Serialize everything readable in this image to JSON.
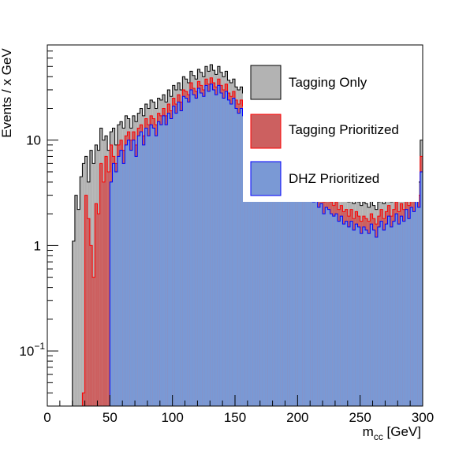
{
  "chart_data": {
    "type": "histogram",
    "xlabel_main": "m",
    "xlabel_sub": "cc",
    "xlabel_unit": " [GeV]",
    "ylabel": "Events / x GeV",
    "x_range": [
      0,
      300
    ],
    "y_range": [
      0.03,
      80
    ],
    "y_scale": "log",
    "bin_width": 2,
    "x_ticks": [
      0,
      50,
      100,
      150,
      200,
      250,
      300
    ],
    "y_ticks": [
      {
        "value": 0.1,
        "base": "10",
        "exp": "−1"
      },
      {
        "value": 1,
        "base": "1",
        "exp": ""
      },
      {
        "value": 10,
        "base": "10",
        "exp": ""
      }
    ],
    "legend_position": "top-right",
    "series": [
      {
        "name": "Tagging Only",
        "fill": "#b3b3b3",
        "stroke": "#000000",
        "values": [
          0,
          0,
          0,
          0,
          0,
          0,
          0,
          0,
          0,
          0,
          1.1,
          3.0,
          2.2,
          4.5,
          6.0,
          7.0,
          4.0,
          8.0,
          6.0,
          9.0,
          8.0,
          13.0,
          10.0,
          11.0,
          8.0,
          12.0,
          13.0,
          9.0,
          14.0,
          15.0,
          13.0,
          17.0,
          16.0,
          13.0,
          17.0,
          15.0,
          18.0,
          20.0,
          17.0,
          22.0,
          20.0,
          24.0,
          23.0,
          20.0,
          25.0,
          24.0,
          27.0,
          23.0,
          30.0,
          26.0,
          33.0,
          30.0,
          35.0,
          30.0,
          40.0,
          38.0,
          35.0,
          45.0,
          41.0,
          38.0,
          47.0,
          44.0,
          40.0,
          50.0,
          45.0,
          52.0,
          46.0,
          42.0,
          50.0,
          44.0,
          40.0,
          45.0,
          37.0,
          35.0,
          38.0,
          32.0,
          30.0,
          32.0,
          28.0,
          26.0,
          25.0,
          23.0,
          22.0,
          20.0,
          18.0,
          19.0,
          16.0,
          15.0,
          14.0,
          15.0,
          12.0,
          12.0,
          11.0,
          10.0,
          9.0,
          9.5,
          8.0,
          8.0,
          7.0,
          7.5,
          6.5,
          6.0,
          5.5,
          6.0,
          5.0,
          5.0,
          4.5,
          4.8,
          4.0,
          4.2,
          3.5,
          4.0,
          3.8,
          3.5,
          3.2,
          3.5,
          3.0,
          3.2,
          2.8,
          3.0,
          2.6,
          3.0,
          2.5,
          2.8,
          2.6,
          2.4,
          2.6,
          2.5,
          2.3,
          2.7,
          2.4,
          2.2,
          2.6,
          3.0,
          2.5,
          2.8,
          3.2,
          2.6,
          3.0,
          3.5,
          2.8,
          3.3,
          3.0,
          3.8,
          3.2,
          4.0,
          3.6,
          6.0,
          4.0,
          10.0
        ]
      },
      {
        "name": "Tagging Prioritized",
        "fill": "#cc6060",
        "stroke": "#ff0000",
        "values": [
          0,
          0,
          0,
          0,
          0,
          0,
          0,
          0,
          0,
          0,
          0,
          0,
          0,
          0,
          0.04,
          3.0,
          1.8,
          1.0,
          0.5,
          2.5,
          2.0,
          6.0,
          4.0,
          7.0,
          5.0,
          9.0,
          7.0,
          6.0,
          9.0,
          10.0,
          8.0,
          11.0,
          12.0,
          10.0,
          12.0,
          9.0,
          13.0,
          14.0,
          11.0,
          16.0,
          14.0,
          17.0,
          16.0,
          14.0,
          18.0,
          17.0,
          20.0,
          17.0,
          22.0,
          19.0,
          25.0,
          22.0,
          27.0,
          23.0,
          30.0,
          29.0,
          27.0,
          35.0,
          31.0,
          29.0,
          36.0,
          33.0,
          30.0,
          38.0,
          34.0,
          39.0,
          35.0,
          32.0,
          38.0,
          33.0,
          30.0,
          34.0,
          28.0,
          26.0,
          29.0,
          24.0,
          22.0,
          24.0,
          21.0,
          19.0,
          18.0,
          17.0,
          16.0,
          14.0,
          13.0,
          14.0,
          12.0,
          11.0,
          10.0,
          11.0,
          9.0,
          9.0,
          8.0,
          7.0,
          6.5,
          7.0,
          5.8,
          6.0,
          5.0,
          5.5,
          4.8,
          4.5,
          4.0,
          4.5,
          3.6,
          3.8,
          3.3,
          3.6,
          3.0,
          3.2,
          2.6,
          3.0,
          2.8,
          2.6,
          2.4,
          2.6,
          2.2,
          2.4,
          2.1,
          2.2,
          1.9,
          2.2,
          1.8,
          2.1,
          1.9,
          1.7,
          1.9,
          1.8,
          1.7,
          2.0,
          1.8,
          1.6,
          1.9,
          2.2,
          1.8,
          2.1,
          2.4,
          1.9,
          2.2,
          2.6,
          2.1,
          2.5,
          2.2,
          2.8,
          2.4,
          3.0,
          2.7,
          4.5,
          3.0,
          7.0
        ]
      },
      {
        "name": "DHZ Prioritized",
        "fill": "#7a99d5",
        "stroke": "#0000ff",
        "values": [
          0,
          0,
          0,
          0,
          0,
          0,
          0,
          0,
          0,
          0,
          0,
          0,
          0,
          0,
          0,
          0,
          0,
          0,
          0,
          0,
          0,
          0,
          0,
          0,
          0,
          4.0,
          6.0,
          5.0,
          7.0,
          8.0,
          6.0,
          9.0,
          10.0,
          8.0,
          10.0,
          7.0,
          11.0,
          12.0,
          9.0,
          13.0,
          11.0,
          14.0,
          13.0,
          11.0,
          15.0,
          14.0,
          17.0,
          14.0,
          18.0,
          16.0,
          21.0,
          18.0,
          23.0,
          19.0,
          26.0,
          25.0,
          23.0,
          30.0,
          27.0,
          25.0,
          31.0,
          28.0,
          26.0,
          33.0,
          29.0,
          34.0,
          30.0,
          27.0,
          33.0,
          28.0,
          25.0,
          29.0,
          24.0,
          22.0,
          25.0,
          20.0,
          18.0,
          20.0,
          17.0,
          15.0,
          15.0,
          14.0,
          13.0,
          11.0,
          10.0,
          11.0,
          9.5,
          9.0,
          8.0,
          9.0,
          7.0,
          7.0,
          6.5,
          5.5,
          5.0,
          5.5,
          4.5,
          4.8,
          4.0,
          4.3,
          3.7,
          3.5,
          3.1,
          3.5,
          2.8,
          3.0,
          2.6,
          2.8,
          2.3,
          2.5,
          2.0,
          2.3,
          2.2,
          2.0,
          1.9,
          2.0,
          1.7,
          1.9,
          1.6,
          1.7,
          1.5,
          1.7,
          1.4,
          1.6,
          1.5,
          1.3,
          1.5,
          1.4,
          1.3,
          1.6,
          1.4,
          1.2,
          1.5,
          1.7,
          1.4,
          1.6,
          1.9,
          1.5,
          1.7,
          2.0,
          1.6,
          1.9,
          1.7,
          2.2,
          1.8,
          2.3,
          2.1,
          3.5,
          2.3,
          5.0
        ]
      }
    ]
  }
}
